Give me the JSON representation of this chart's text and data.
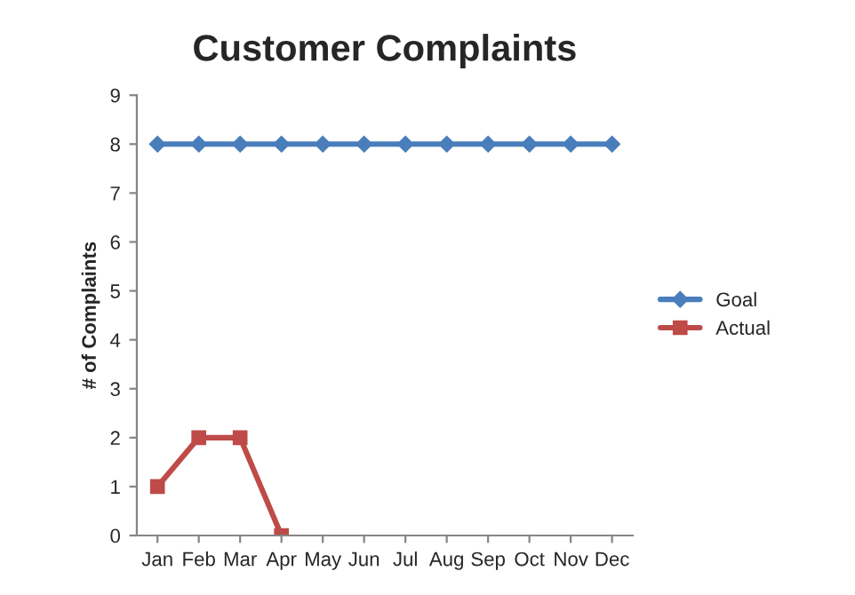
{
  "chart_data": {
    "type": "line",
    "title": "Customer Complaints",
    "ylabel": "# of Complaints",
    "categories": [
      "Jan",
      "Feb",
      "Mar",
      "Apr",
      "May",
      "Jun",
      "Jul",
      "Aug",
      "Sep",
      "Oct",
      "Nov",
      "Dec"
    ],
    "series": [
      {
        "name": "Goal",
        "color": "#4a7ebb",
        "marker": "diamond",
        "values": [
          8,
          8,
          8,
          8,
          8,
          8,
          8,
          8,
          8,
          8,
          8,
          8
        ]
      },
      {
        "name": "Actual",
        "color": "#be4b48",
        "marker": "square",
        "values": [
          1,
          2,
          2,
          0,
          null,
          null,
          null,
          null,
          null,
          null,
          null,
          null
        ]
      }
    ],
    "ylim": [
      0,
      9
    ],
    "yticks": [
      0,
      1,
      2,
      3,
      4,
      5,
      6,
      7,
      8,
      9
    ],
    "grid": false,
    "legend": "right",
    "line_style": "solid"
  }
}
